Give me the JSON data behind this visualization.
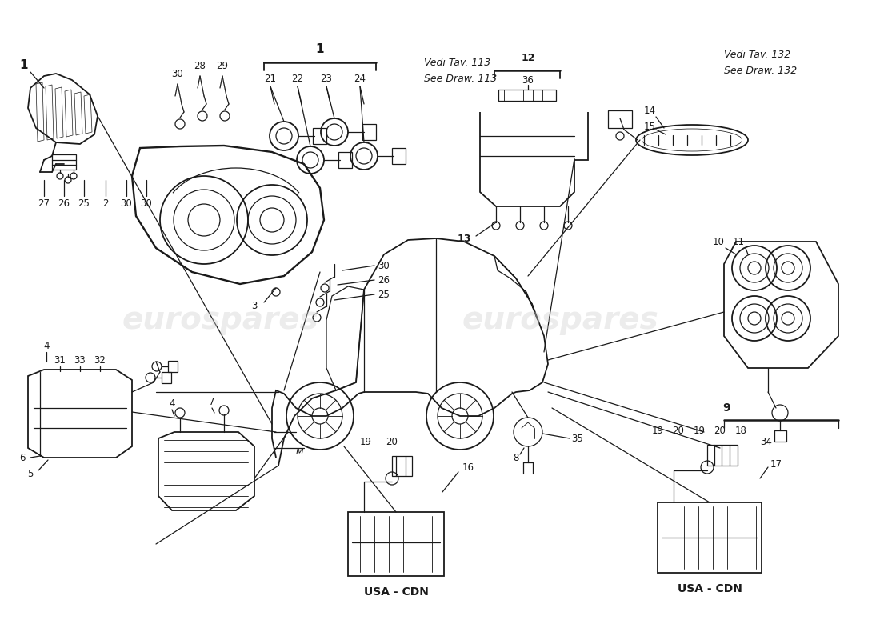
{
  "bg_color": "#ffffff",
  "line_color": "#1a1a1a",
  "watermark_color": "#d0d0d0",
  "fig_w": 11.0,
  "fig_h": 8.0,
  "dpi": 100,
  "ref_113": [
    "Vedi Tav. 113",
    "See Draw. 113"
  ],
  "ref_132": [
    "Vedi Tav. 132",
    "See Draw. 132"
  ],
  "usa_cdn": "USA - CDN"
}
